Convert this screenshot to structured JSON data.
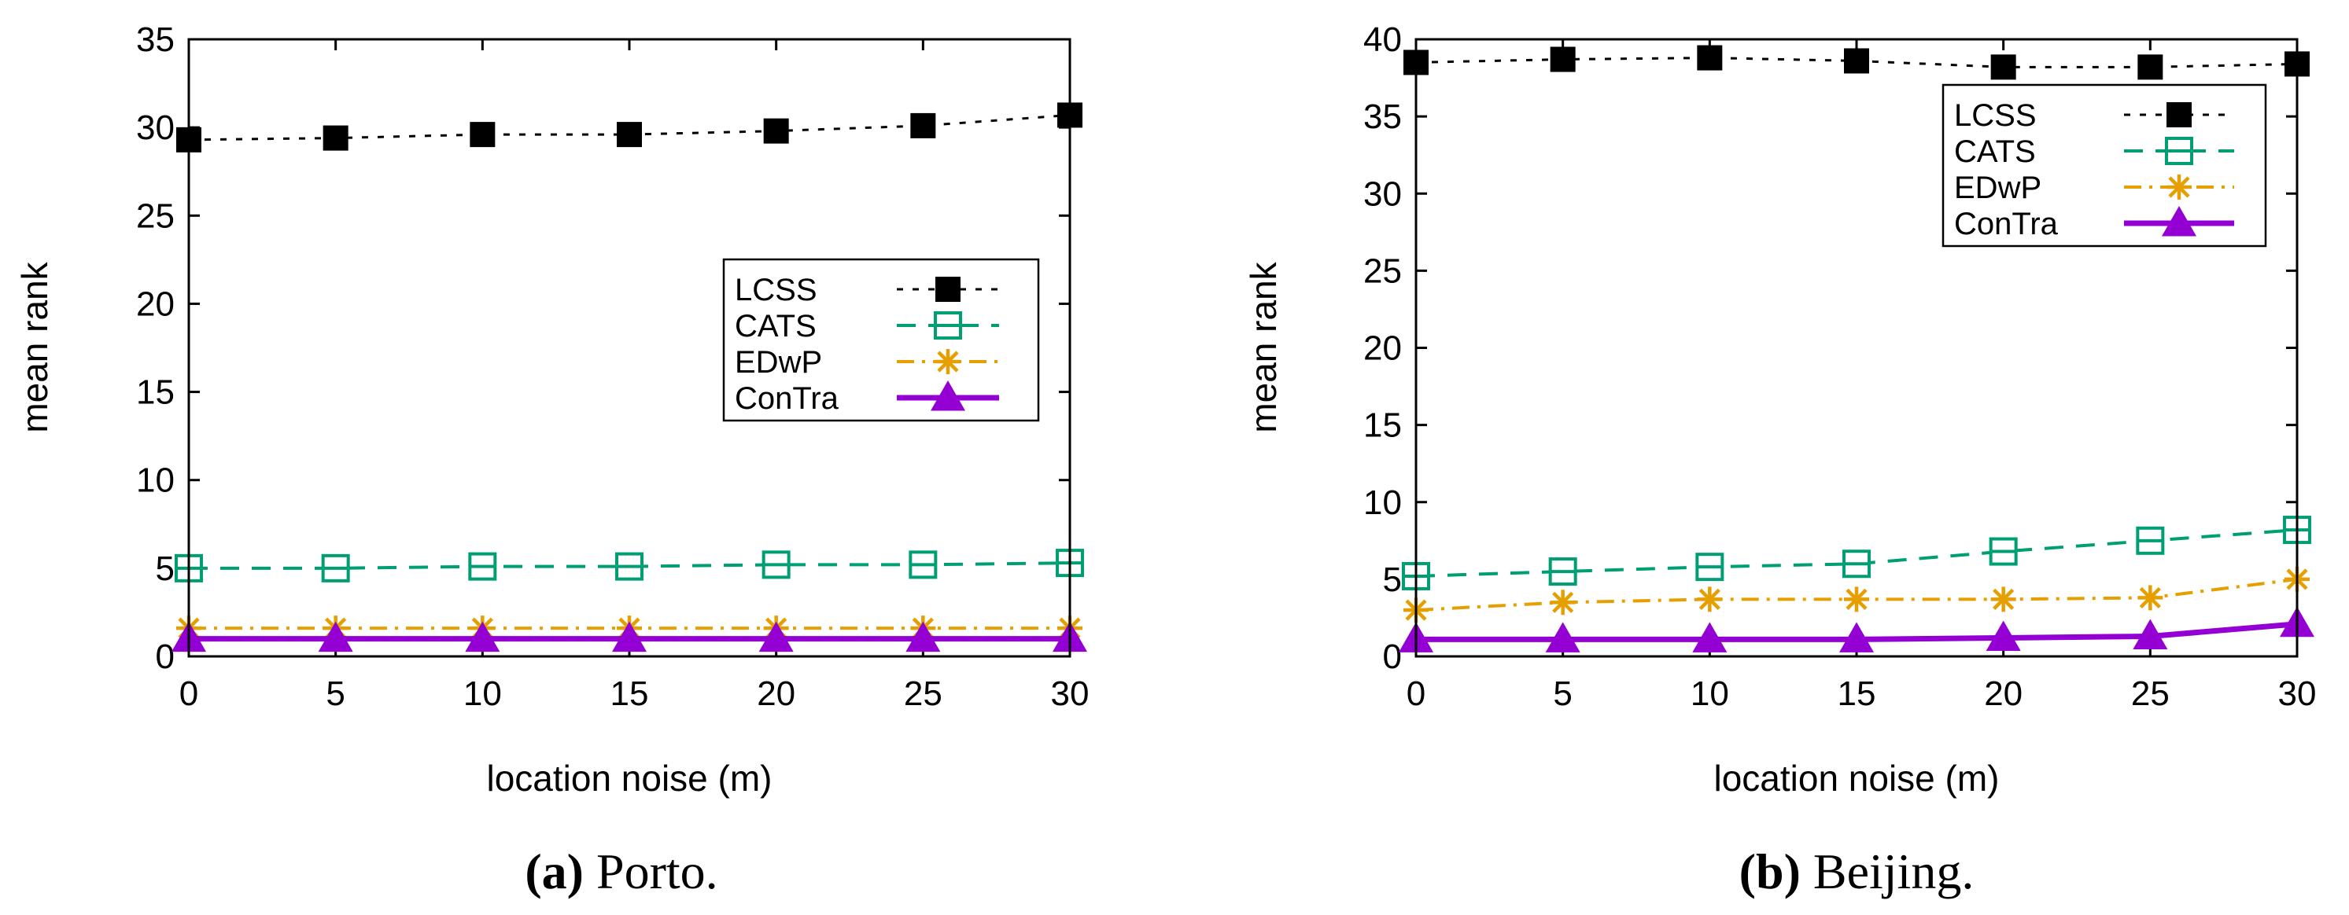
{
  "chart_data": [
    {
      "id": "porto",
      "type": "line",
      "caption_letter": "(a)",
      "caption_text": " Porto.",
      "xlabel": "location noise (m)",
      "ylabel": "mean rank",
      "x": [
        0,
        5,
        10,
        15,
        20,
        25,
        30
      ],
      "xticks": [
        0,
        5,
        10,
        15,
        20,
        25,
        30
      ],
      "yticks": [
        0,
        5,
        10,
        15,
        20,
        25,
        30,
        35
      ],
      "xlim": [
        0,
        30
      ],
      "ylim": [
        0,
        35
      ],
      "legend_position": "center-right",
      "series": [
        {
          "name": "LCSS",
          "values": [
            29.3,
            29.4,
            29.6,
            29.6,
            29.8,
            30.1,
            30.7
          ],
          "color": "#000000",
          "marker": "filled-square",
          "dash": "dotted"
        },
        {
          "name": "CATS",
          "values": [
            5.0,
            5.0,
            5.1,
            5.1,
            5.2,
            5.2,
            5.3
          ],
          "color": "#009e73",
          "marker": "open-square",
          "dash": "dashed"
        },
        {
          "name": "EDwP",
          "values": [
            1.6,
            1.6,
            1.6,
            1.6,
            1.6,
            1.6,
            1.6
          ],
          "color": "#e69f00",
          "marker": "asterisk",
          "dash": "dashdot"
        },
        {
          "name": "ConTra",
          "values": [
            1.0,
            1.0,
            1.0,
            1.0,
            1.0,
            1.0,
            1.0
          ],
          "color": "#9400d3",
          "marker": "triangle",
          "dash": "solid"
        }
      ]
    },
    {
      "id": "beijing",
      "type": "line",
      "caption_letter": "(b)",
      "caption_text": " Beijing.",
      "xlabel": "location noise (m)",
      "ylabel": "mean rank",
      "x": [
        0,
        5,
        10,
        15,
        20,
        25,
        30
      ],
      "xticks": [
        0,
        5,
        10,
        15,
        20,
        25,
        30
      ],
      "yticks": [
        0,
        5,
        10,
        15,
        20,
        25,
        30,
        35,
        40
      ],
      "xlim": [
        0,
        30
      ],
      "ylim": [
        0,
        40
      ],
      "legend_position": "top-right",
      "series": [
        {
          "name": "LCSS",
          "values": [
            38.5,
            38.7,
            38.8,
            38.6,
            38.2,
            38.2,
            38.4
          ],
          "color": "#000000",
          "marker": "filled-square",
          "dash": "dotted"
        },
        {
          "name": "CATS",
          "values": [
            5.2,
            5.5,
            5.8,
            6.0,
            6.8,
            7.5,
            8.2
          ],
          "color": "#009e73",
          "marker": "open-square",
          "dash": "dashed"
        },
        {
          "name": "EDwP",
          "values": [
            3.0,
            3.5,
            3.7,
            3.7,
            3.7,
            3.8,
            5.0
          ],
          "color": "#e69f00",
          "marker": "asterisk",
          "dash": "dashdot"
        },
        {
          "name": "ConTra",
          "values": [
            1.1,
            1.1,
            1.1,
            1.1,
            1.2,
            1.3,
            2.1
          ],
          "color": "#9400d3",
          "marker": "triangle",
          "dash": "solid"
        }
      ]
    }
  ]
}
